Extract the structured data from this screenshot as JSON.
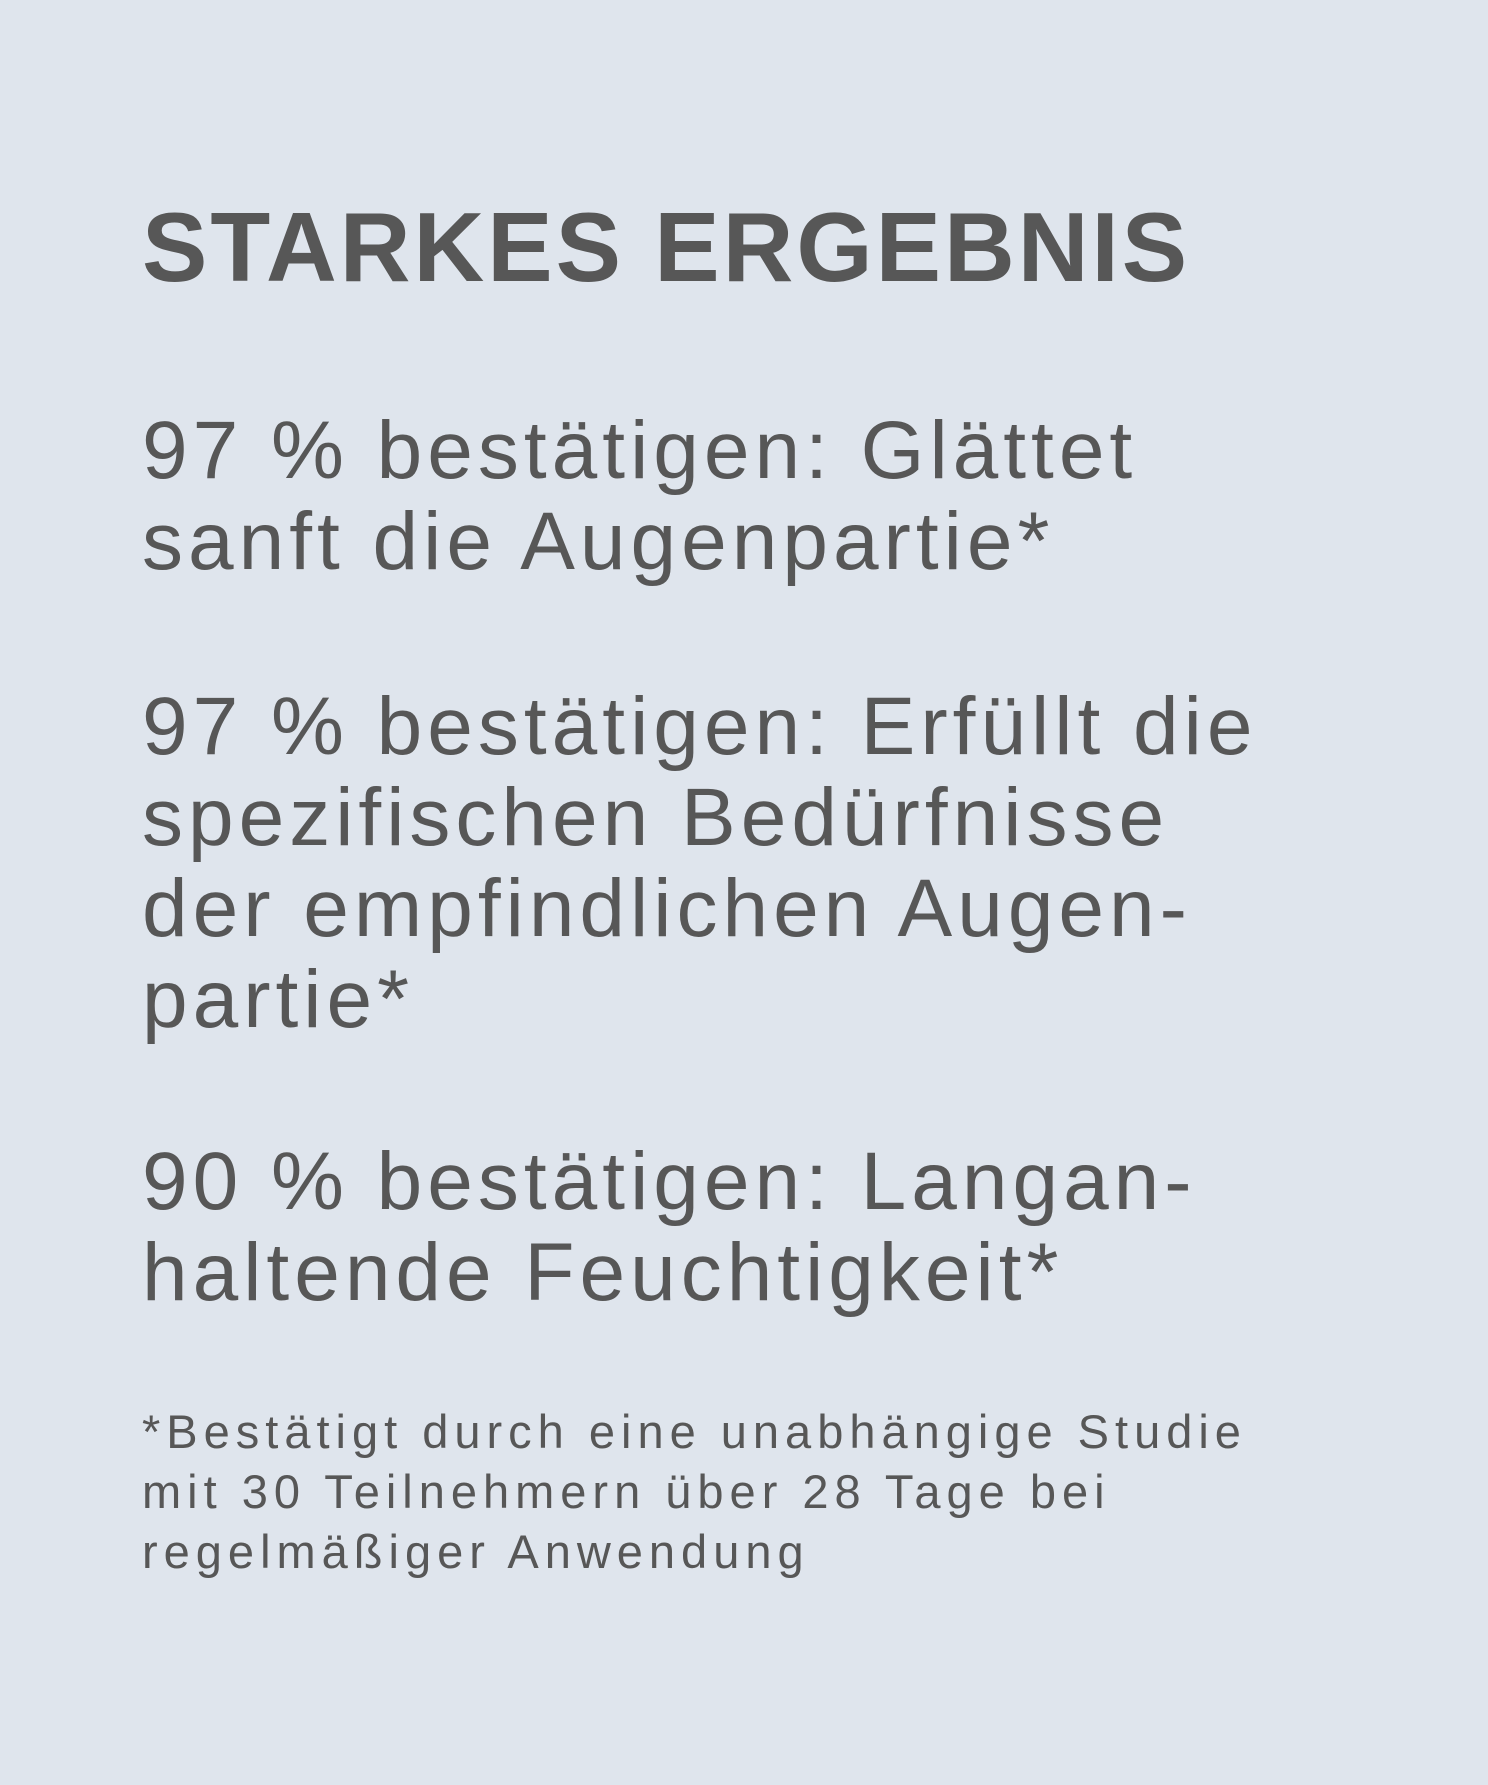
{
  "title": "STARKES ERGEBNIS",
  "claims": [
    {
      "lines": [
        "97 % bestätigen: Glättet",
        "sanft die Augenpartie*"
      ]
    },
    {
      "lines": [
        "97 % bestätigen: Erfüllt die",
        "spezifischen Bedürfnisse",
        "der empfindlichen Augen-",
        "partie*"
      ]
    },
    {
      "lines": [
        "90 % bestätigen: Langan-",
        "haltende Feuchtigkeit*"
      ]
    }
  ],
  "footnote": {
    "lines": [
      "*Bestätigt durch eine unabhängige Studie",
      "mit 30 Teilnehmern über 28 Tage bei",
      "regelmäßiger Anwendung"
    ]
  },
  "colors": {
    "background": "#dfe5ed",
    "text": "#575757"
  }
}
